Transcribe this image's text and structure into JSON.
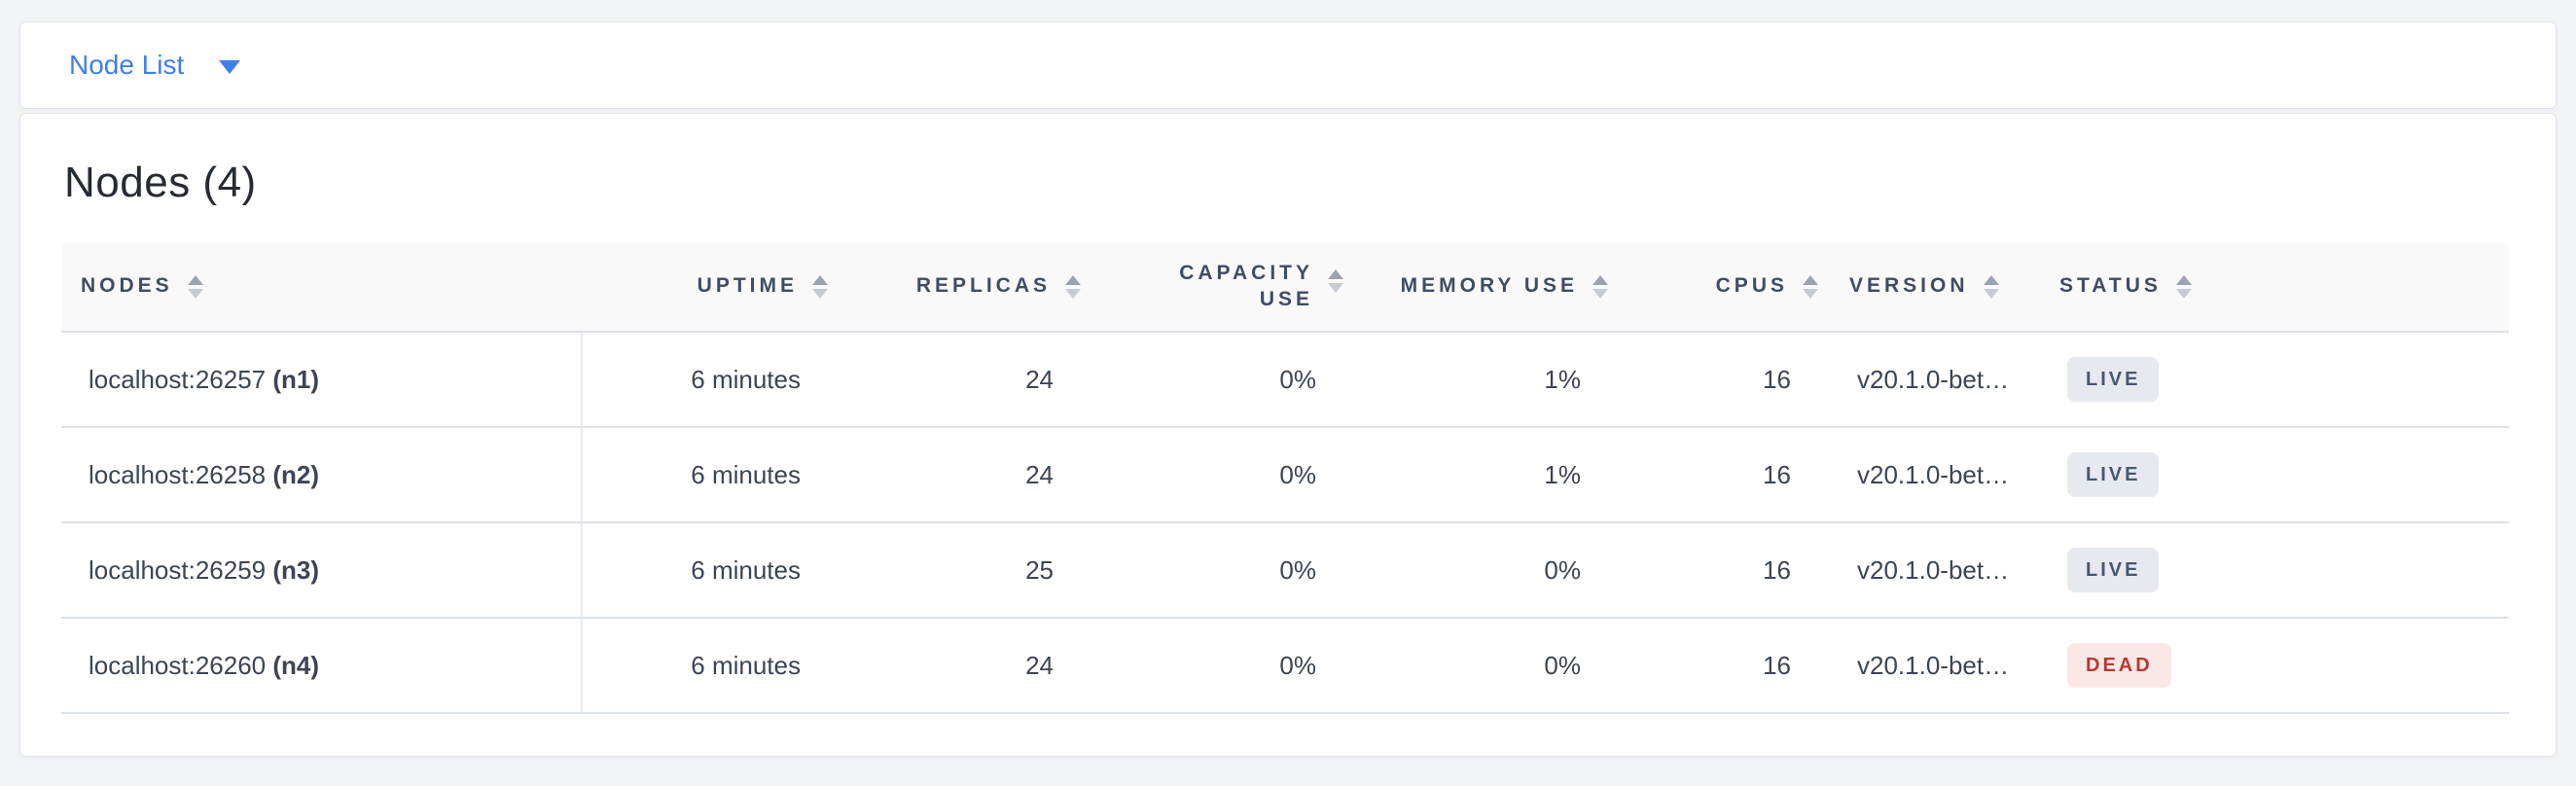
{
  "header": {
    "dropdown_label": "Node List"
  },
  "main": {
    "title": "Nodes (4)"
  },
  "table": {
    "columns": [
      {
        "key": "node",
        "label": "NODES",
        "align": "left",
        "wrap": false
      },
      {
        "key": "uptime",
        "label": "UPTIME",
        "align": "right",
        "wrap": false
      },
      {
        "key": "replicas",
        "label": "REPLICAS",
        "align": "right",
        "wrap": false
      },
      {
        "key": "capacity",
        "label": "CAPACITY USE",
        "align": "right",
        "wrap": true
      },
      {
        "key": "memory",
        "label": "MEMORY USE",
        "align": "right",
        "wrap": false
      },
      {
        "key": "cpus",
        "label": "CPUS",
        "align": "right",
        "wrap": false
      },
      {
        "key": "version",
        "label": "VERSION",
        "align": "left",
        "wrap": false
      },
      {
        "key": "status",
        "label": "STATUS",
        "align": "left",
        "wrap": false
      }
    ],
    "rows": [
      {
        "address": "localhost:26257",
        "node_id": "(n1)",
        "uptime": "6 minutes",
        "replicas": "24",
        "capacity": "0%",
        "memory": "1%",
        "cpus": "16",
        "version": "v20.1.0-bet…",
        "status": "LIVE"
      },
      {
        "address": "localhost:26258",
        "node_id": "(n2)",
        "uptime": "6 minutes",
        "replicas": "24",
        "capacity": "0%",
        "memory": "1%",
        "cpus": "16",
        "version": "v20.1.0-bet…",
        "status": "LIVE"
      },
      {
        "address": "localhost:26259",
        "node_id": "(n3)",
        "uptime": "6 minutes",
        "replicas": "25",
        "capacity": "0%",
        "memory": "0%",
        "cpus": "16",
        "version": "v20.1.0-bet…",
        "status": "LIVE"
      },
      {
        "address": "localhost:26260",
        "node_id": "(n4)",
        "uptime": "6 minutes",
        "replicas": "24",
        "capacity": "0%",
        "memory": "0%",
        "cpus": "16",
        "version": "v20.1.0-bet…",
        "status": "DEAD"
      }
    ]
  },
  "colors": {
    "accent_blue": "#3e7ef0",
    "live_badge_bg": "#e7e9f0",
    "live_badge_text": "#475870",
    "dead_badge_bg": "#fbe7e5",
    "dead_badge_text": "#b53a33"
  },
  "icons": {
    "dropdown_caret": "chevron-down-icon",
    "sort": "sort-arrows-icon"
  }
}
